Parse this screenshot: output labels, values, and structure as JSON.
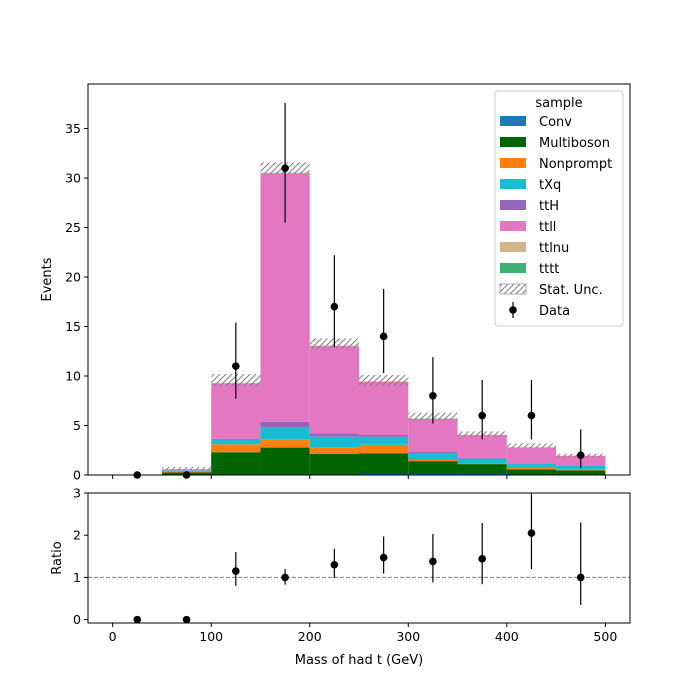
{
  "chart_data": [
    {
      "panel": "main",
      "type": "bar",
      "stacked": true,
      "bin_edges": [
        0,
        50,
        100,
        150,
        200,
        250,
        300,
        350,
        400,
        450,
        500
      ],
      "xlim": [
        -25,
        525
      ],
      "ylim": [
        0,
        39.5
      ],
      "ylabel": "Events",
      "yticks": [
        0,
        5,
        10,
        15,
        20,
        25,
        30,
        35
      ],
      "legend": {
        "title": "sample",
        "placement": "top-right"
      },
      "series": [
        {
          "name": "Conv",
          "color": "#1f77b4",
          "values": [
            0,
            0,
            0,
            0.02,
            0.02,
            0.1,
            0.1,
            0.1,
            0.02,
            0.02
          ]
        },
        {
          "name": "Multiboson",
          "color": "#006400",
          "values": [
            0,
            0.25,
            2.3,
            2.75,
            2.1,
            2.1,
            1.3,
            1.0,
            0.55,
            0.45
          ]
        },
        {
          "name": "Nonprompt",
          "color": "#ff7f0e",
          "values": [
            0,
            0.15,
            0.8,
            0.85,
            0.7,
            0.85,
            0.12,
            0.05,
            0.15,
            0.1
          ]
        },
        {
          "name": "tXq",
          "color": "#17becf",
          "values": [
            0,
            0.05,
            0.45,
            1.15,
            1.05,
            0.8,
            0.7,
            0.5,
            0.4,
            0.35
          ]
        },
        {
          "name": "ttH",
          "color": "#9467bd",
          "values": [
            0,
            0.02,
            0.1,
            0.6,
            0.35,
            0.2,
            0.1,
            0.08,
            0.05,
            0.05
          ]
        },
        {
          "name": "ttll",
          "color": "#e377c2",
          "values": [
            0,
            0.1,
            5.6,
            25.1,
            8.8,
            5.35,
            3.35,
            2.3,
            1.6,
            0.95
          ]
        },
        {
          "name": "ttlnu",
          "color": "#d2b48c",
          "values": [
            0,
            0.01,
            0.03,
            0.03,
            0.03,
            0.03,
            0.02,
            0.02,
            0.02,
            0.02
          ]
        },
        {
          "name": "tttt",
          "color": "#3cb371",
          "values": [
            0,
            0.01,
            0.02,
            0.03,
            0.02,
            0.02,
            0.02,
            0.01,
            0.01,
            0.01
          ]
        }
      ],
      "stat_unc": {
        "name": "Stat. Unc.",
        "down": [
          0,
          0.55,
          9.0,
          30.4,
          12.8,
          9.0,
          5.55,
          3.9,
          2.7,
          1.8
        ],
        "up": [
          0,
          0.8,
          10.2,
          31.6,
          13.8,
          10.1,
          6.3,
          4.4,
          3.2,
          2.15
        ]
      },
      "data": {
        "name": "Data",
        "x": [
          25,
          75,
          125,
          175,
          225,
          275,
          325,
          375,
          425,
          475
        ],
        "y": [
          0,
          0,
          11,
          31,
          17,
          14,
          8,
          6,
          6,
          2
        ],
        "err_low": [
          0,
          0,
          3.3,
          5.5,
          4.1,
          3.7,
          2.8,
          2.4,
          2.4,
          1.3
        ],
        "err_high": [
          0,
          0,
          4.4,
          6.6,
          5.2,
          4.8,
          3.9,
          3.6,
          3.6,
          2.6
        ]
      }
    },
    {
      "panel": "ratio",
      "type": "scatter",
      "xlabel": "Mass of had t (GeV)",
      "ylabel": "Ratio",
      "xlim": [
        -25,
        525
      ],
      "ylim": [
        -0.08,
        3.0
      ],
      "xticks": [
        0,
        100,
        200,
        300,
        400,
        500
      ],
      "yticks": [
        0,
        1,
        2,
        3
      ],
      "reference_line": 1,
      "x": [
        25,
        75,
        125,
        175,
        225,
        275,
        325,
        375,
        425,
        475
      ],
      "y": [
        0,
        0,
        1.15,
        1.0,
        1.3,
        1.47,
        1.38,
        1.44,
        2.05,
        1.0
      ],
      "err_low": [
        0,
        0,
        0.35,
        0.17,
        0.32,
        0.38,
        0.5,
        0.6,
        0.85,
        0.65
      ],
      "err_high": [
        0,
        0,
        0.45,
        0.2,
        0.38,
        0.5,
        0.65,
        0.85,
        1.0,
        1.3
      ]
    }
  ]
}
